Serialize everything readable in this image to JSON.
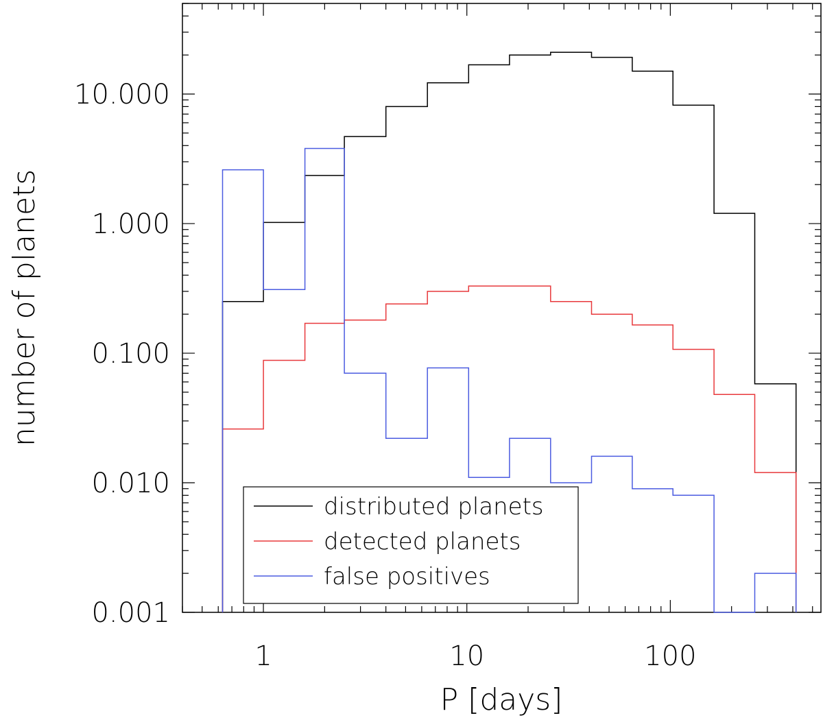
{
  "chart_data": {
    "type": "line",
    "style": "step histogram",
    "xlabel": "P [days]",
    "ylabel": "number of planets",
    "xscale": "log",
    "yscale": "log",
    "xlim": [
      0.4,
      550
    ],
    "ylim": [
      0.001,
      50
    ],
    "grid": false,
    "legend_position": "bottom-left",
    "x_ticks": [
      {
        "value": 1,
        "label": "1"
      },
      {
        "value": 10,
        "label": "10"
      },
      {
        "value": 100,
        "label": "100"
      }
    ],
    "y_ticks": [
      {
        "value": 0.001,
        "label": "0.001"
      },
      {
        "value": 0.01,
        "label": "0.010"
      },
      {
        "value": 0.1,
        "label": "0.100"
      },
      {
        "value": 1,
        "label": "1.000"
      },
      {
        "value": 10,
        "label": "10.000"
      }
    ],
    "bin_edges": [
      0.63,
      1.0,
      1.6,
      2.5,
      4.0,
      6.4,
      10.2,
      16.2,
      25.8,
      41,
      65,
      103,
      164,
      260,
      415
    ],
    "series": [
      {
        "name": "distributed planets",
        "color": "#000000",
        "values": [
          0.25,
          1.02,
          2.35,
          4.7,
          8.0,
          12.2,
          16.8,
          20.0,
          21.0,
          19.2,
          15.0,
          8.2,
          1.2,
          0.058
        ]
      },
      {
        "name": "detected planets",
        "color": "#e8383b",
        "values": [
          0.026,
          0.088,
          0.17,
          0.18,
          0.24,
          0.3,
          0.33,
          0.33,
          0.25,
          0.2,
          0.165,
          0.107,
          0.048,
          0.012
        ]
      },
      {
        "name": "false positives",
        "color": "#4a5be0",
        "values": [
          2.6,
          0.31,
          3.8,
          0.07,
          0.022,
          0.077,
          0.011,
          0.022,
          0.01,
          0.016,
          0.009,
          0.008,
          null,
          0.002
        ]
      }
    ]
  }
}
